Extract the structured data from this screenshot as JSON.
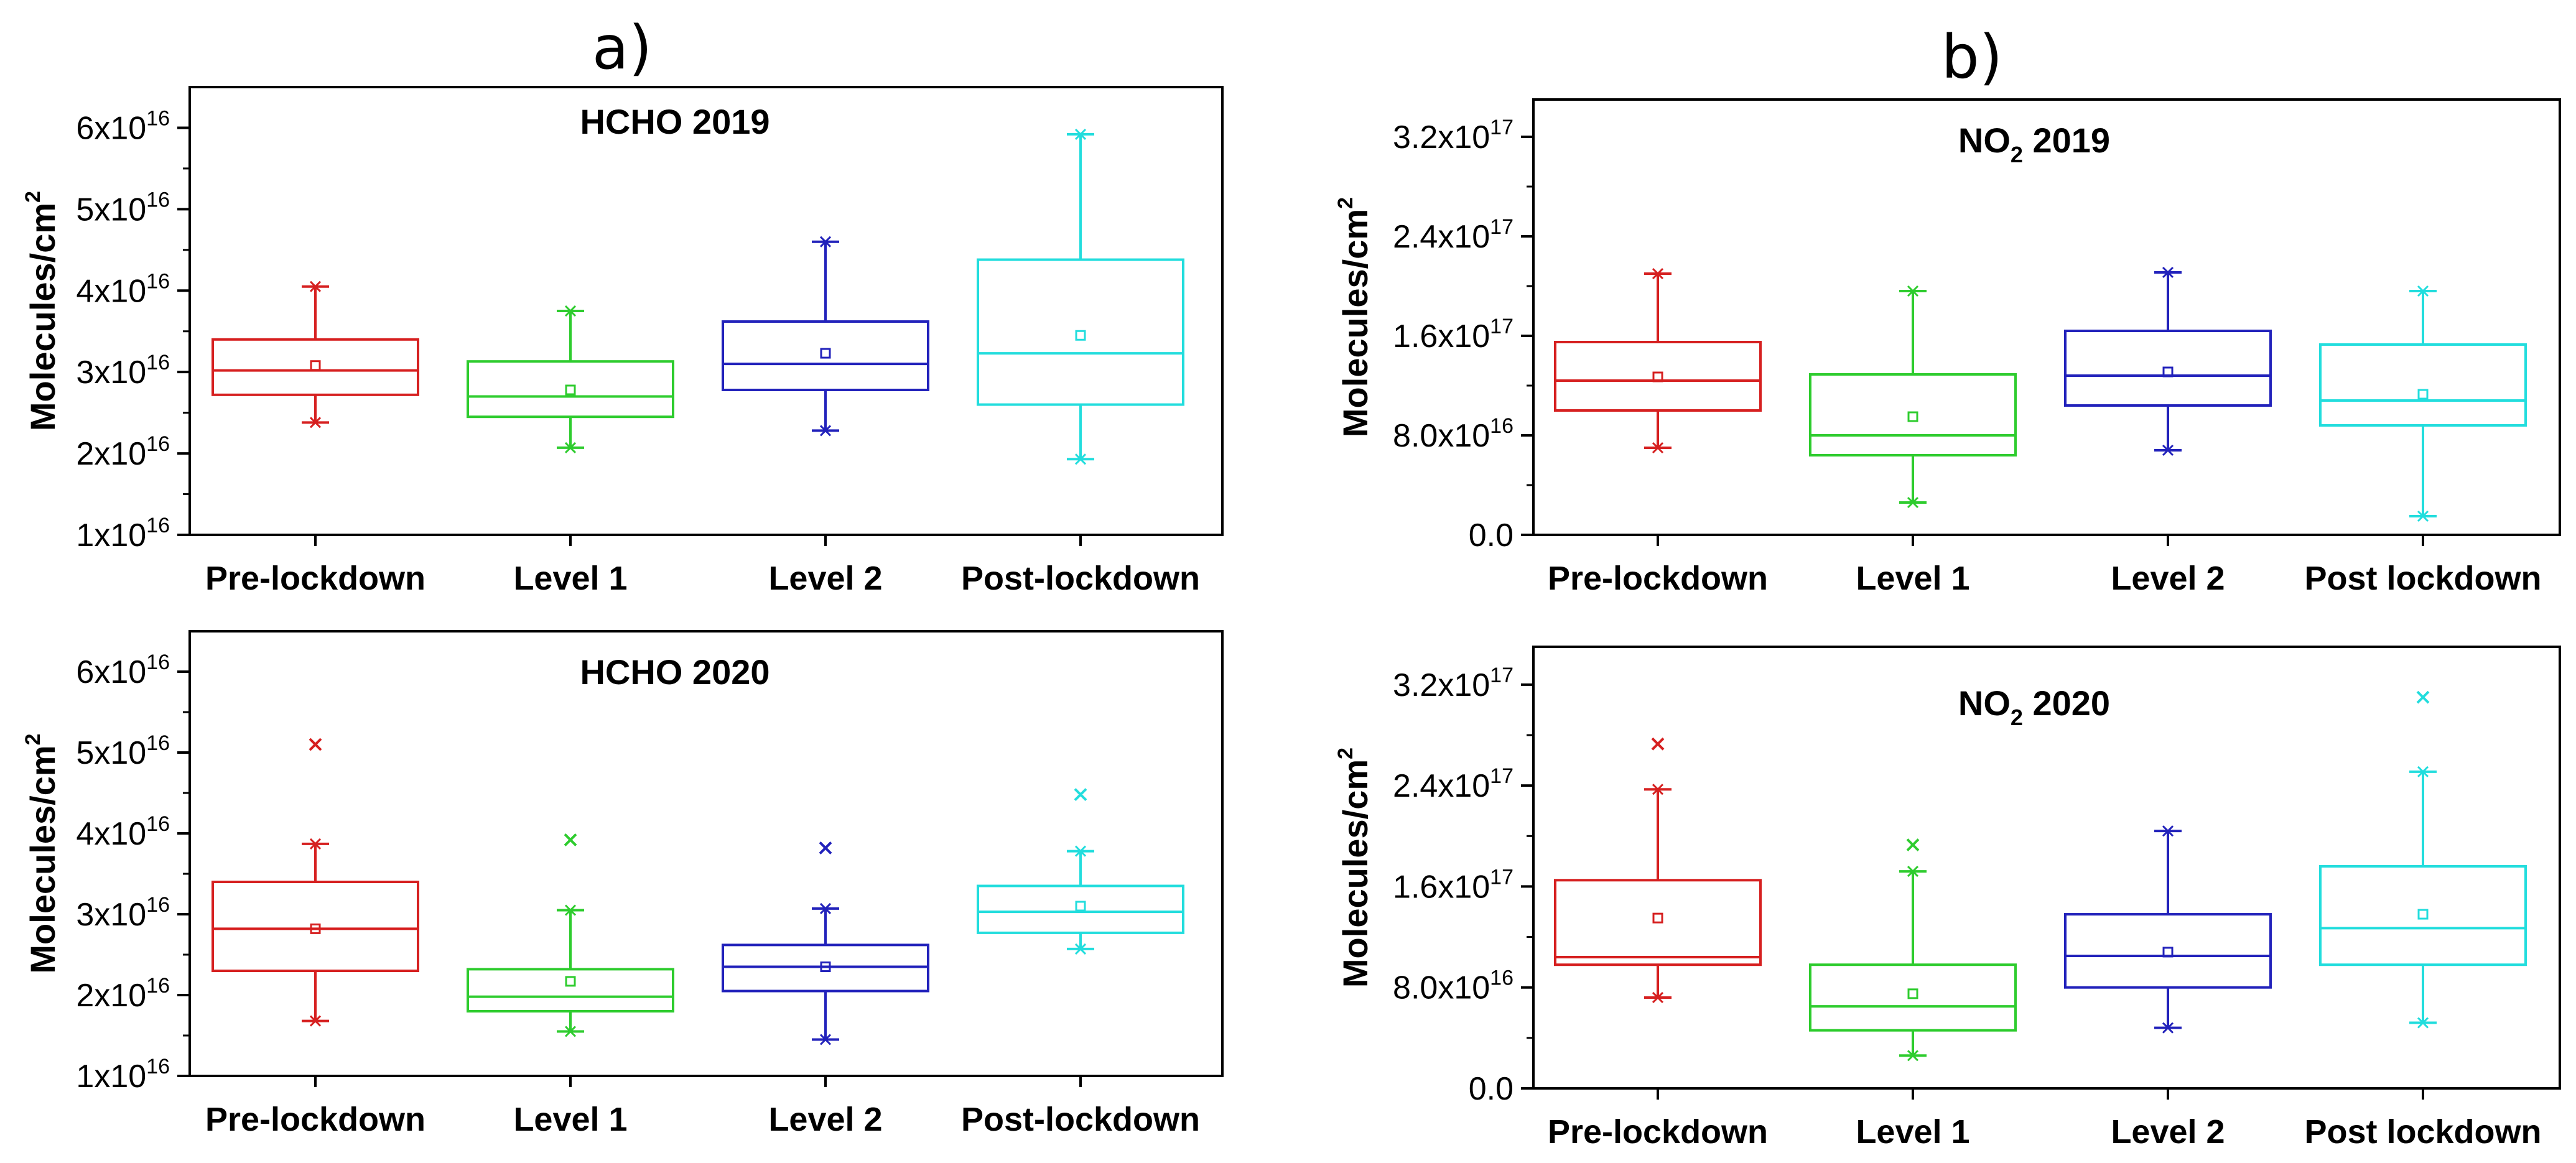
{
  "panel_labels": {
    "a": "a)",
    "b": "b)"
  },
  "chart_data": [
    {
      "type": "box",
      "id": "hcho2019",
      "title": "HCHO 2019",
      "ylabel": "Molecules/cm",
      "ylabel_sup": "2",
      "categories": [
        "Pre-lockdown",
        "Level 1",
        "Level 2",
        "Post-lockdown"
      ],
      "ylim": [
        1e+16,
        6.5e+16
      ],
      "yticks": [
        {
          "value": 1e+16,
          "mant": "1x10",
          "exp": "16"
        },
        {
          "value": 2e+16,
          "mant": "2x10",
          "exp": "16"
        },
        {
          "value": 3e+16,
          "mant": "3x10",
          "exp": "16"
        },
        {
          "value": 4e+16,
          "mant": "4x10",
          "exp": "16"
        },
        {
          "value": 5e+16,
          "mant": "5x10",
          "exp": "16"
        },
        {
          "value": 6e+16,
          "mant": "6x10",
          "exp": "16"
        }
      ],
      "boxes": [
        {
          "whisker_low": 2.38e+16,
          "q1": 2.72e+16,
          "median": 3.02e+16,
          "q3": 3.4e+16,
          "whisker_high": 4.05e+16,
          "mean": 3.08e+16,
          "outliers": []
        },
        {
          "whisker_low": 2.07e+16,
          "q1": 2.45e+16,
          "median": 2.7e+16,
          "q3": 3.13e+16,
          "whisker_high": 3.75e+16,
          "mean": 2.78e+16,
          "outliers": []
        },
        {
          "whisker_low": 2.28e+16,
          "q1": 2.78e+16,
          "median": 3.1e+16,
          "q3": 3.62e+16,
          "whisker_high": 4.6e+16,
          "mean": 3.23e+16,
          "outliers": []
        },
        {
          "whisker_low": 1.93e+16,
          "q1": 2.6e+16,
          "median": 3.23e+16,
          "q3": 4.38e+16,
          "whisker_high": 5.92e+16,
          "mean": 3.45e+16,
          "outliers": []
        }
      ]
    },
    {
      "type": "box",
      "id": "hcho2020",
      "title": "HCHO 2020",
      "ylabel": "Molecules/cm",
      "ylabel_sup": "2",
      "categories": [
        "Pre-lockdown",
        "Level 1",
        "Level 2",
        "Post-lockdown"
      ],
      "ylim": [
        1e+16,
        6.5e+16
      ],
      "yticks": [
        {
          "value": 1e+16,
          "mant": "1x10",
          "exp": "16"
        },
        {
          "value": 2e+16,
          "mant": "2x10",
          "exp": "16"
        },
        {
          "value": 3e+16,
          "mant": "3x10",
          "exp": "16"
        },
        {
          "value": 4e+16,
          "mant": "4x10",
          "exp": "16"
        },
        {
          "value": 5e+16,
          "mant": "5x10",
          "exp": "16"
        },
        {
          "value": 6e+16,
          "mant": "6x10",
          "exp": "16"
        }
      ],
      "boxes": [
        {
          "whisker_low": 1.68e+16,
          "q1": 2.3e+16,
          "median": 2.82e+16,
          "q3": 3.4e+16,
          "whisker_high": 3.87e+16,
          "mean": 2.82e+16,
          "outliers": [
            5.1e+16
          ]
        },
        {
          "whisker_low": 1.55e+16,
          "q1": 1.8e+16,
          "median": 1.98e+16,
          "q3": 2.32e+16,
          "whisker_high": 3.05e+16,
          "mean": 2.17e+16,
          "outliers": [
            3.92e+16
          ]
        },
        {
          "whisker_low": 1.45e+16,
          "q1": 2.05e+16,
          "median": 2.35e+16,
          "q3": 2.62e+16,
          "whisker_high": 3.07e+16,
          "mean": 2.35e+16,
          "outliers": [
            3.82e+16
          ]
        },
        {
          "whisker_low": 2.57e+16,
          "q1": 2.77e+16,
          "median": 3.03e+16,
          "q3": 3.35e+16,
          "whisker_high": 3.78e+16,
          "mean": 3.1e+16,
          "outliers": [
            4.48e+16
          ]
        }
      ]
    },
    {
      "type": "box",
      "id": "no2_2019",
      "title_main": "NO",
      "title_sub": "2",
      "title_rest": " 2019",
      "ylabel": "Molecules/cm",
      "ylabel_sup": "2",
      "categories": [
        "Pre-lockdown",
        "Level 1",
        "Level 2",
        "Post lockdown"
      ],
      "ylim": [
        0,
        3.5e+17
      ],
      "yticks": [
        {
          "value": 0,
          "mant": "0.0",
          "exp": ""
        },
        {
          "value": 8e+16,
          "mant": "8.0x10",
          "exp": "16"
        },
        {
          "value": 1.6e+17,
          "mant": "1.6x10",
          "exp": "17"
        },
        {
          "value": 2.4e+17,
          "mant": "2.4x10",
          "exp": "17"
        },
        {
          "value": 3.2e+17,
          "mant": "3.2x10",
          "exp": "17"
        }
      ],
      "boxes": [
        {
          "whisker_low": 7e+16,
          "q1": 1e+17,
          "median": 1.24e+17,
          "q3": 1.55e+17,
          "whisker_high": 2.1e+17,
          "mean": 1.27e+17,
          "outliers": []
        },
        {
          "whisker_low": 2.6e+16,
          "q1": 6.4e+16,
          "median": 8e+16,
          "q3": 1.29e+17,
          "whisker_high": 1.96e+17,
          "mean": 9.5e+16,
          "outliers": []
        },
        {
          "whisker_low": 6.8e+16,
          "q1": 1.04e+17,
          "median": 1.28e+17,
          "q3": 1.64e+17,
          "whisker_high": 2.11e+17,
          "mean": 1.31e+17,
          "outliers": []
        },
        {
          "whisker_low": 1.5e+16,
          "q1": 8.8e+16,
          "median": 1.08e+17,
          "q3": 1.53e+17,
          "whisker_high": 1.96e+17,
          "mean": 1.13e+17,
          "outliers": []
        }
      ]
    },
    {
      "type": "box",
      "id": "no2_2020",
      "title_main": "NO",
      "title_sub": "2",
      "title_rest": " 2020",
      "ylabel": "Molecules/cm",
      "ylabel_sup": "2",
      "categories": [
        "Pre-lockdown",
        "Level 1",
        "Level 2",
        "Post lockdown"
      ],
      "ylim": [
        0,
        3.5e+17
      ],
      "yticks": [
        {
          "value": 0,
          "mant": "0.0",
          "exp": ""
        },
        {
          "value": 8e+16,
          "mant": "8.0x10",
          "exp": "16"
        },
        {
          "value": 1.6e+17,
          "mant": "1.6x10",
          "exp": "17"
        },
        {
          "value": 2.4e+17,
          "mant": "2.4x10",
          "exp": "17"
        },
        {
          "value": 3.2e+17,
          "mant": "3.2x10",
          "exp": "17"
        }
      ],
      "boxes": [
        {
          "whisker_low": 7.2e+16,
          "q1": 9.8e+16,
          "median": 1.04e+17,
          "q3": 1.65e+17,
          "whisker_high": 2.37e+17,
          "mean": 1.35e+17,
          "outliers": [
            2.73e+17
          ]
        },
        {
          "whisker_low": 2.6e+16,
          "q1": 4.6e+16,
          "median": 6.5e+16,
          "q3": 9.8e+16,
          "whisker_high": 1.72e+17,
          "mean": 7.5e+16,
          "outliers": [
            1.93e+17
          ]
        },
        {
          "whisker_low": 4.8e+16,
          "q1": 8e+16,
          "median": 1.05e+17,
          "q3": 1.38e+17,
          "whisker_high": 2.04e+17,
          "mean": 1.08e+17,
          "outliers": []
        },
        {
          "whisker_low": 5.2e+16,
          "q1": 9.8e+16,
          "median": 1.27e+17,
          "q3": 1.76e+17,
          "whisker_high": 2.51e+17,
          "mean": 1.38e+17,
          "outliers": [
            3.1e+17
          ]
        }
      ]
    }
  ],
  "colors": {
    "series": [
      "#d62020",
      "#2ecc2e",
      "#2222bb",
      "#22dddd"
    ],
    "axis": "#000000"
  },
  "icons": {
    "mean_marker": "small-square-icon",
    "outlier_marker": "x-mark-icon"
  }
}
